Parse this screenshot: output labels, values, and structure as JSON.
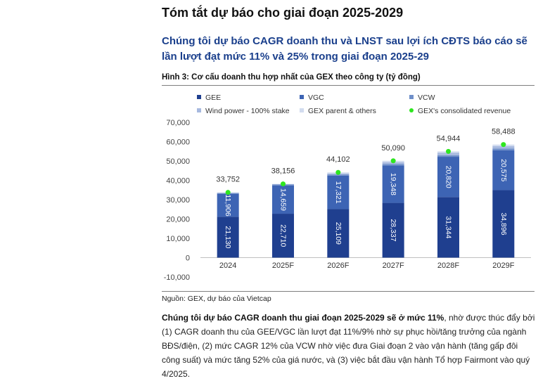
{
  "heading": "Tóm tắt dự báo cho giai đoạn 2025-2029",
  "subheading": "Chúng tôi dự báo CAGR doanh thu và LNST sau lợi ích CĐTS báo cáo sẽ lần lượt đạt mức 11% và 25% trong giai đoạn 2025-29",
  "figure_caption": "Hình 3: Cơ cấu doanh thu hợp nhất của GEX theo công ty (tỷ đồng)",
  "source": "Nguồn: GEX, dự báo của Vietcap",
  "paragraph": {
    "bold": "Chúng tôi dự báo CAGR doanh thu giai đoạn 2025-2029 sẽ ở mức 11%",
    "rest": ", nhờ được thúc đẩy bởi (1) CAGR doanh thu của GEE/VGC lần lượt đạt 11%/9% nhờ sự phục hồi/tăng trưởng của ngành BĐS/điện, (2) mức CAGR 12% của VCW nhờ việc đưa Giai đoạn 2 vào vận hành (tăng gấp đôi công suất) và mức tăng 52% của giá nước, và (3) việc bắt đầu vận hành Tổ hợp Fairmont vào quý 4/2025."
  },
  "chart_data": {
    "type": "bar",
    "stacked": true,
    "categories": [
      "2024",
      "2025F",
      "2026F",
      "2027F",
      "2028F",
      "2029F"
    ],
    "series": [
      {
        "name": "GEE",
        "color": "#1f3f8f",
        "values": [
          21130,
          22710,
          25109,
          28337,
          31344,
          34896
        ],
        "labels": [
          "21,130",
          "22,710",
          "25,109",
          "28,337",
          "31,344",
          "34,896"
        ]
      },
      {
        "name": "VGC",
        "color": "#3d64b4",
        "values": [
          11906,
          14659,
          17321,
          19348,
          20820,
          20575
        ],
        "labels": [
          "11,906",
          "14,659",
          "17,321",
          "19,348",
          "20,820",
          "20,575"
        ]
      },
      {
        "name": "VCW",
        "color": "#6f8fc9",
        "values": [
          350,
          450,
          600,
          700,
          800,
          900
        ]
      },
      {
        "name": "Wind power - 100% stake",
        "color": "#a7b9df",
        "values": [
          200,
          200,
          450,
          1000,
          1300,
          1300
        ]
      },
      {
        "name": "GEX parent & others",
        "color": "#d2dcef",
        "values": [
          166,
          137,
          622,
          705,
          680,
          817
        ]
      }
    ],
    "totals": {
      "name": "GEX's consolidated revenue",
      "color": "#2ee61f",
      "values": [
        33752,
        38156,
        44102,
        50090,
        54944,
        58488
      ],
      "labels": [
        "33,752",
        "38,156",
        "44,102",
        "50,090",
        "54,944",
        "58,488"
      ]
    },
    "ylim": [
      -10000,
      70000
    ],
    "yticks": [
      -10000,
      0,
      10000,
      20000,
      30000,
      40000,
      50000,
      60000,
      70000
    ],
    "ytick_labels": [
      "-10,000",
      "0",
      "10,000",
      "20,000",
      "30,000",
      "40,000",
      "50,000",
      "60,000",
      "70,000"
    ],
    "xlabel": "",
    "ylabel": "",
    "grid": false,
    "legend_position": "top"
  }
}
